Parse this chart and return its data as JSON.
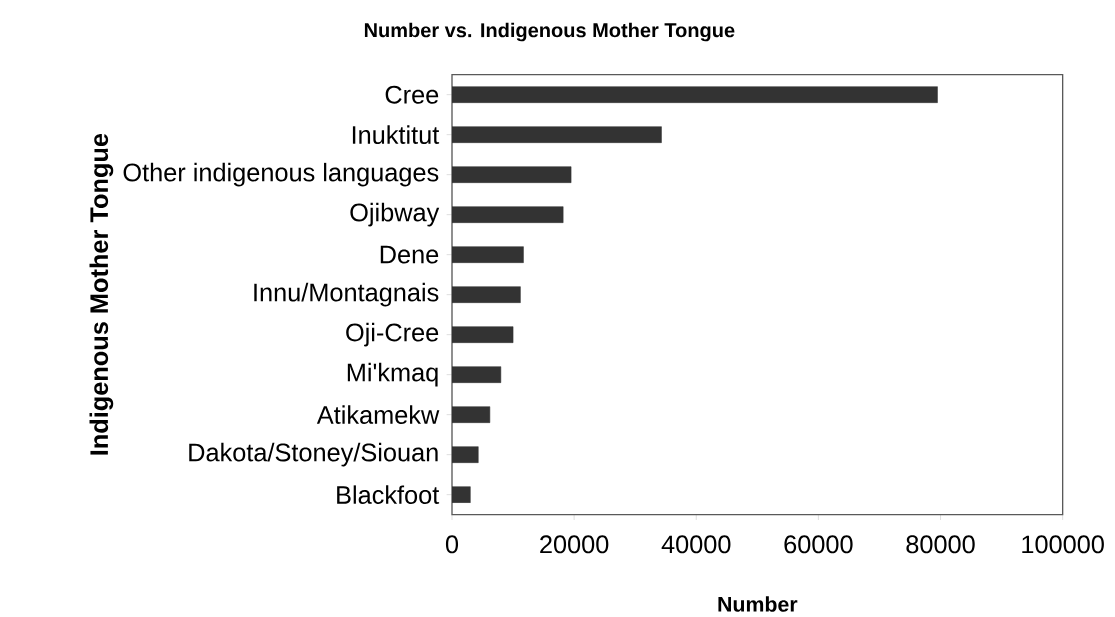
{
  "chart_data": {
    "type": "bar",
    "orientation": "horizontal",
    "title": "Number vs. Indigenous Mother Tongue",
    "xlabel": "Number",
    "ylabel": "Indigenous Mother Tongue",
    "categories": [
      "Cree",
      "Inuktitut",
      "Other indigenous languages",
      "Ojibway",
      "Dene",
      "Innu/Montagnais",
      "Oji-Cree",
      "Mi'kmaq",
      "Atikamekw",
      "Dakota/Stoney/Siouan",
      "Blackfoot"
    ],
    "values": [
      79500,
      34300,
      19500,
      18200,
      11700,
      11200,
      10000,
      8000,
      6200,
      4300,
      3000
    ],
    "color": "#333333",
    "xlim": [
      0,
      100000
    ],
    "xticks": [
      0,
      20000,
      40000,
      60000,
      80000,
      100000
    ]
  }
}
